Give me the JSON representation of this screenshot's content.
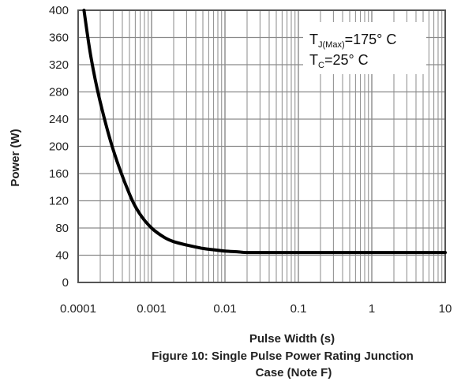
{
  "chart_data": {
    "type": "line",
    "x_scale": "log",
    "xlabel": "Pulse Width (s)",
    "ylabel": "Power (W)",
    "xlim": [
      0.0001,
      10
    ],
    "ylim": [
      0,
      400
    ],
    "x_tick_labels": [
      "0.0001",
      "0.001",
      "0.01",
      "0.1",
      "1",
      "10"
    ],
    "y_tick_labels": [
      "0",
      "40",
      "80",
      "120",
      "160",
      "200",
      "240",
      "280",
      "320",
      "360",
      "400"
    ],
    "grid": true,
    "legend_placement": "top-right",
    "annotation": {
      "tj_main": "T",
      "tj_sub": "J(Max)",
      "tj_value": "=175° C",
      "tc_main": "T",
      "tc_sub": "C",
      "tc_value": "=25° C"
    },
    "caption_line1": "Figure 10: Single Pulse Power Rating Junction",
    "caption_line2": "Case (Note F)",
    "series": [
      {
        "x": [
          0.00012,
          0.00015,
          0.0002,
          0.0003,
          0.0005,
          0.0007,
          0.001,
          0.0015,
          0.002,
          0.003,
          0.005,
          0.007,
          0.01,
          0.015,
          0.02,
          0.05,
          0.1,
          1,
          10
        ],
        "y": [
          400,
          330,
          265,
          195,
          130,
          100,
          80,
          66,
          60,
          55,
          50,
          48,
          46,
          45,
          44,
          44,
          44,
          44,
          44
        ]
      }
    ],
    "colors": {
      "line": "#000000",
      "grid": "#8a8a8a",
      "frame": "#555555"
    }
  }
}
